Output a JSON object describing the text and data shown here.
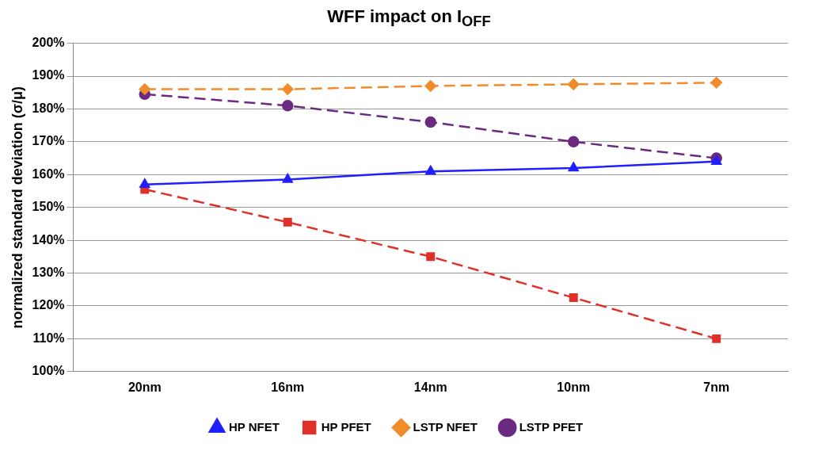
{
  "chart_data": {
    "type": "line",
    "title": "WFF impact on I$_{OFF}$",
    "ylabel": "normalized standard deviation (σ/μ)",
    "categories": [
      "20nm",
      "16nm",
      "14nm",
      "10nm",
      "7nm"
    ],
    "series": [
      {
        "name": "HP NFET",
        "color": "#1f1fff",
        "values": [
          157,
          158.5,
          161,
          162,
          164
        ],
        "marker": "triangle",
        "line_style": "solid"
      },
      {
        "name": "HP PFET",
        "color": "#e0302a",
        "values": [
          155.5,
          145.5,
          135,
          122.5,
          110
        ],
        "marker": "square",
        "line_style": "dashed"
      },
      {
        "name": "LSTP NFET",
        "color": "#f08c2a",
        "values": [
          186,
          186,
          187,
          187.5,
          188
        ],
        "marker": "diamond",
        "line_style": "dashed"
      },
      {
        "name": "LSTP PFET",
        "color": "#6a2a80",
        "values": [
          184.5,
          181,
          176,
          170,
          165
        ],
        "marker": "circle",
        "line_style": "dashed"
      }
    ],
    "ylim": [
      100,
      200
    ],
    "yticks": [
      {
        "value": 100,
        "label": "100%"
      },
      {
        "value": 110,
        "label": "110%"
      },
      {
        "value": 120,
        "label": "120%"
      },
      {
        "value": 130,
        "label": "130%"
      },
      {
        "value": 140,
        "label": "140%"
      },
      {
        "value": 150,
        "label": "150%"
      },
      {
        "value": 160,
        "label": "160%"
      },
      {
        "value": 170,
        "label": "170%"
      },
      {
        "value": 180,
        "label": "180%"
      },
      {
        "value": 190,
        "label": "190%"
      },
      {
        "value": 200,
        "label": "200%"
      }
    ],
    "grid": "y",
    "legend": "bottom"
  }
}
